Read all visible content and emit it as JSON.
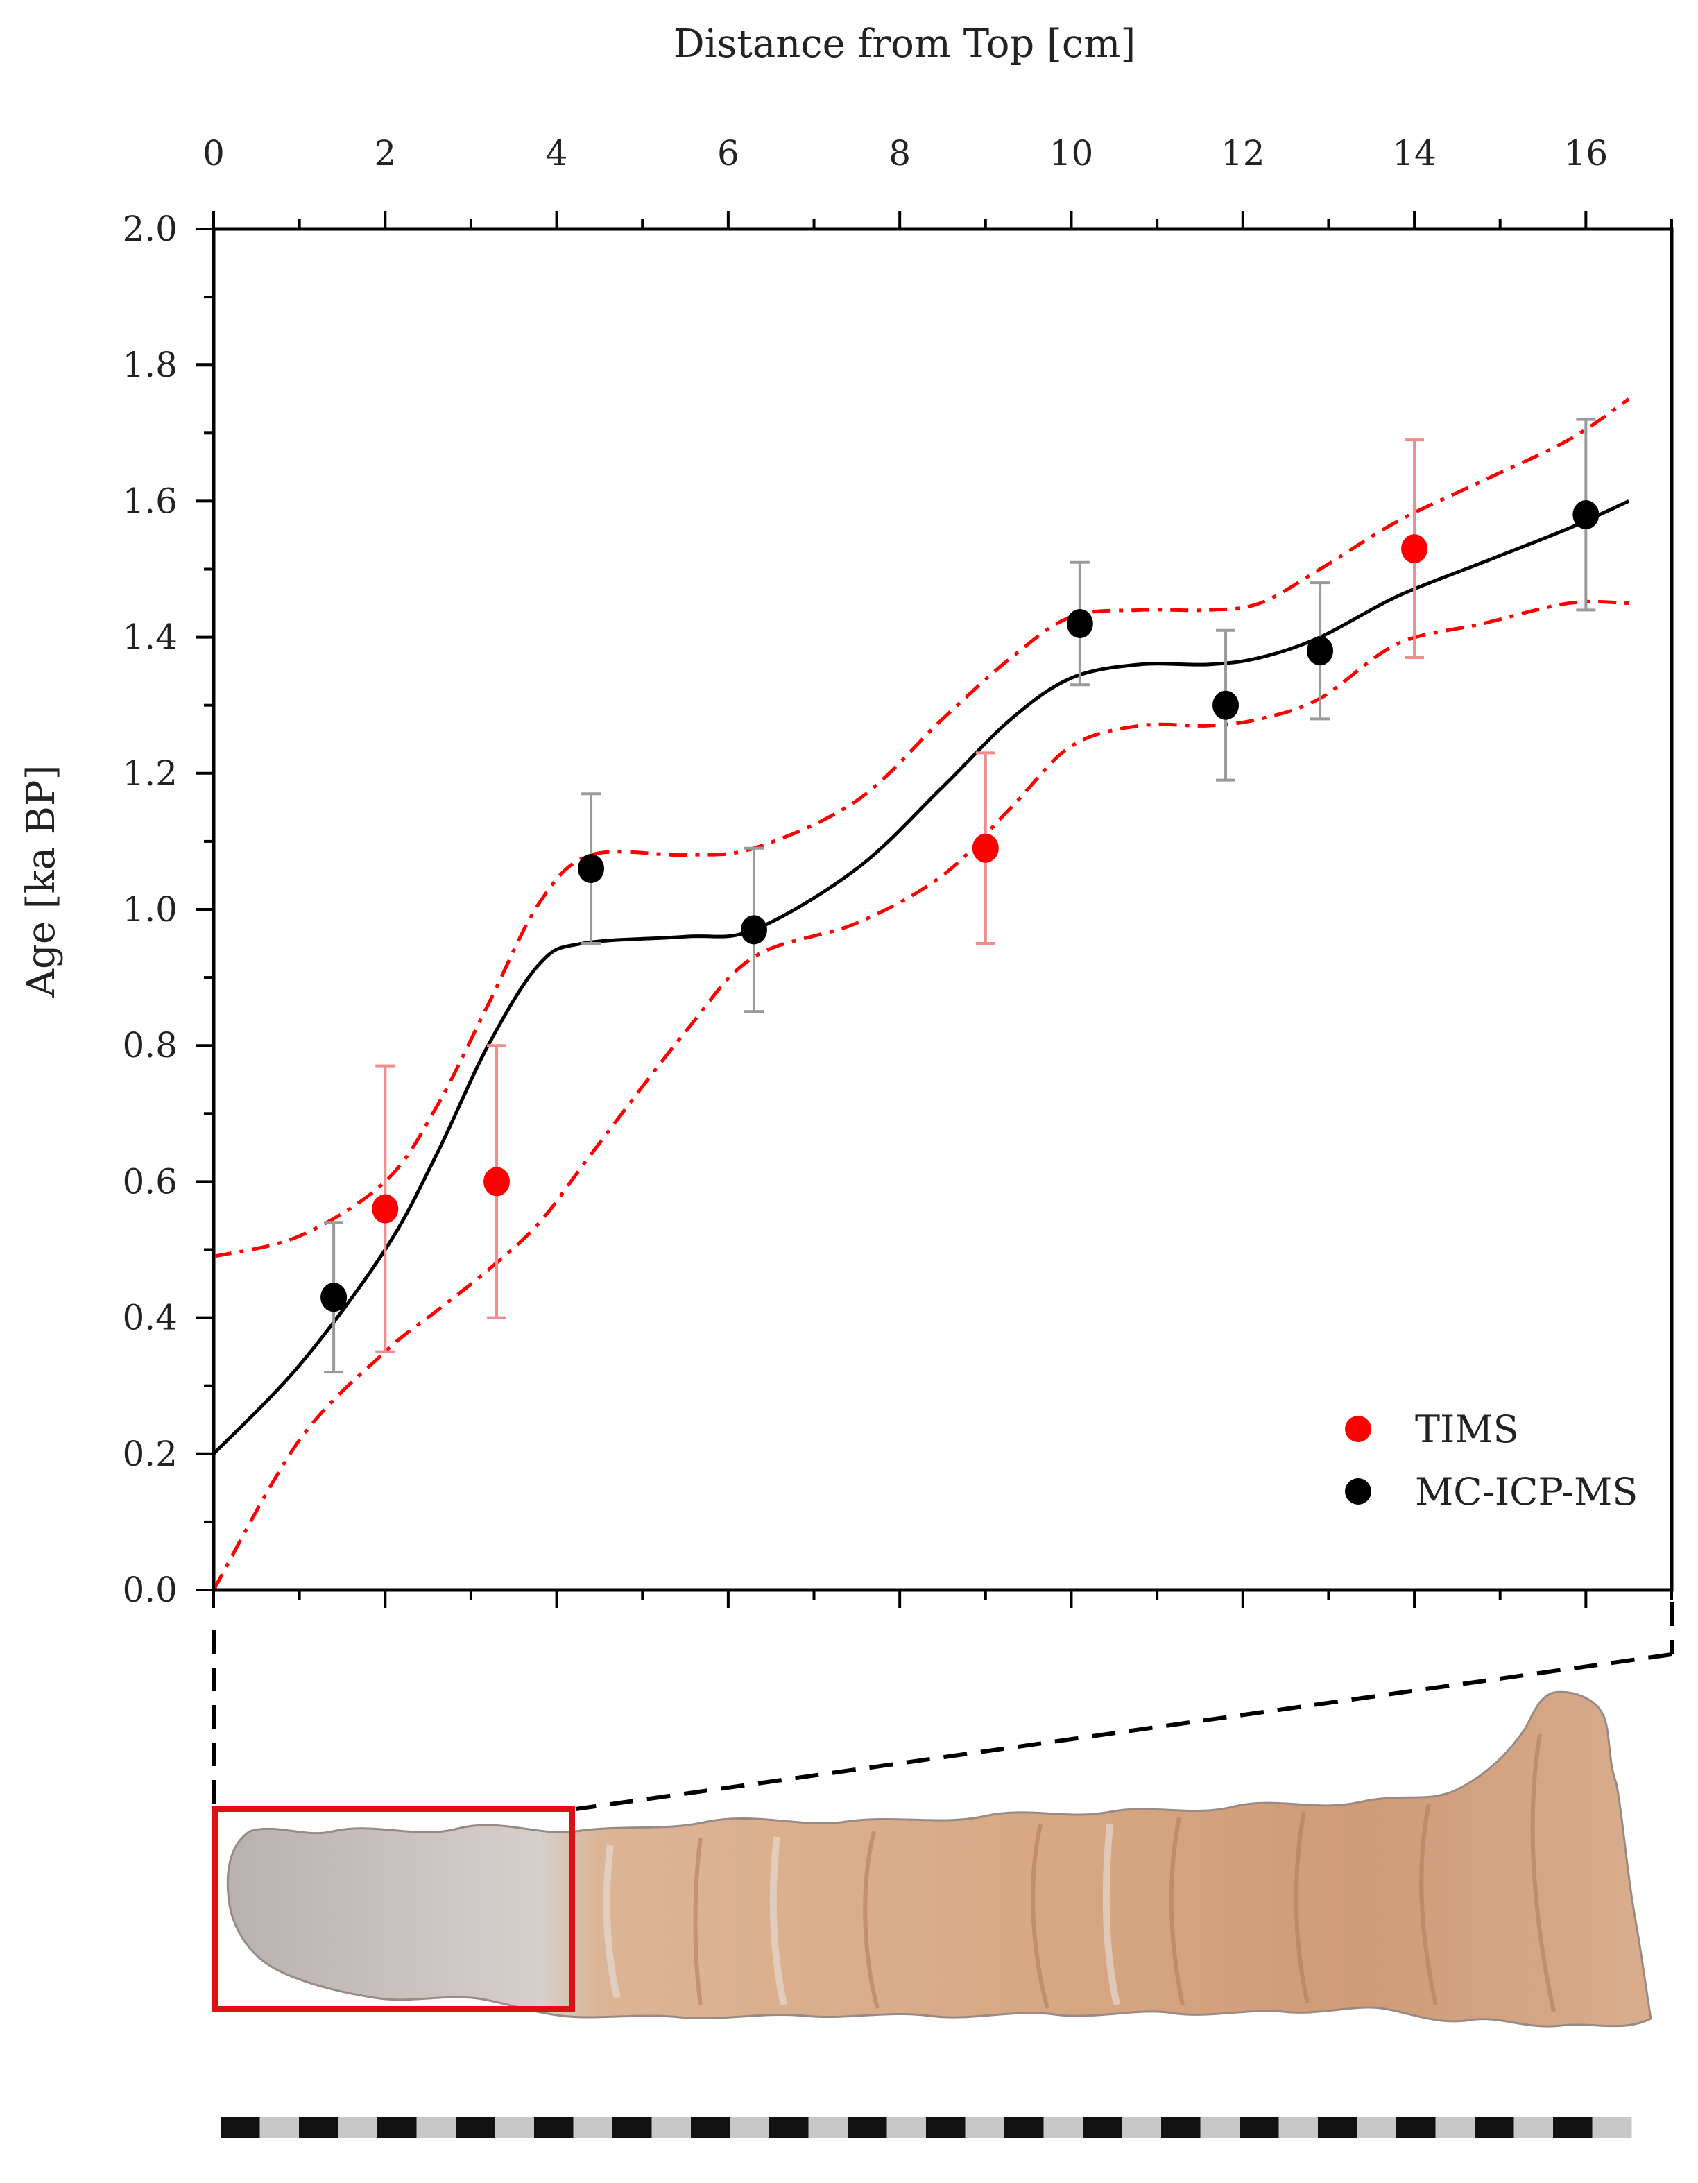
{
  "chart_data": {
    "type": "scatter",
    "title": "",
    "xlabel": "Distance from Top [cm]",
    "ylabel": "Age [ka BP]",
    "xlim": [
      0,
      17
    ],
    "ylim": [
      0.0,
      2.0
    ],
    "x_axis_position": "top",
    "x_ticks": [
      0,
      2,
      4,
      6,
      8,
      10,
      12,
      14,
      16
    ],
    "x_tick_labels": [
      "0",
      "2",
      "4",
      "6",
      "8",
      "10",
      "12",
      "14",
      "16"
    ],
    "y_ticks": [
      0.0,
      0.2,
      0.4,
      0.6,
      0.8,
      1.0,
      1.2,
      1.4,
      1.6,
      1.8,
      2.0
    ],
    "y_tick_labels": [
      "0.0",
      "0.2",
      "0.4",
      "0.6",
      "0.8",
      "1.0",
      "1.2",
      "1.4",
      "1.6",
      "1.8",
      "2.0"
    ],
    "grid": false,
    "legend_position": "bottom-right",
    "series": [
      {
        "name": "TIMS",
        "color": "#ff0000",
        "points": [
          {
            "x": 2.0,
            "y": 0.56,
            "err": 0.21
          },
          {
            "x": 3.3,
            "y": 0.6,
            "err": 0.2
          },
          {
            "x": 9.0,
            "y": 1.09,
            "err": 0.14
          },
          {
            "x": 14.0,
            "y": 1.53,
            "err": 0.16
          }
        ]
      },
      {
        "name": "MC-ICP-MS",
        "color": "#000000",
        "points": [
          {
            "x": 1.4,
            "y": 0.43,
            "err": 0.11
          },
          {
            "x": 4.4,
            "y": 1.06,
            "err": 0.11
          },
          {
            "x": 6.3,
            "y": 0.97,
            "err": 0.12
          },
          {
            "x": 10.1,
            "y": 1.42,
            "err": 0.09
          },
          {
            "x": 11.8,
            "y": 1.3,
            "err": 0.11
          },
          {
            "x": 12.9,
            "y": 1.38,
            "err": 0.1
          },
          {
            "x": 16.0,
            "y": 1.58,
            "err": 0.14
          }
        ]
      }
    ],
    "age_model": {
      "color": "#000000",
      "x": [
        0,
        1,
        2,
        2.6,
        3.2,
        3.8,
        4.3,
        5.5,
        6.3,
        7.5,
        8.5,
        9.3,
        10.0,
        10.8,
        11.6,
        12.2,
        12.9,
        13.8,
        14.8,
        15.8,
        16.5
      ],
      "y": [
        0.2,
        0.33,
        0.5,
        0.64,
        0.8,
        0.92,
        0.95,
        0.96,
        0.97,
        1.06,
        1.18,
        1.28,
        1.34,
        1.36,
        1.36,
        1.37,
        1.4,
        1.46,
        1.51,
        1.56,
        1.6
      ]
    },
    "confidence_upper": {
      "color": "#ff0000",
      "x": [
        0,
        1,
        2,
        2.6,
        3.2,
        3.8,
        4.4,
        5.5,
        6.3,
        7.5,
        8.5,
        9.3,
        10.0,
        10.8,
        11.6,
        12.2,
        12.9,
        13.8,
        14.8,
        15.8,
        16.5
      ],
      "y": [
        0.49,
        0.52,
        0.6,
        0.71,
        0.86,
        1.01,
        1.08,
        1.08,
        1.09,
        1.16,
        1.28,
        1.37,
        1.43,
        1.44,
        1.44,
        1.45,
        1.5,
        1.57,
        1.63,
        1.69,
        1.75
      ]
    },
    "confidence_lower": {
      "color": "#ff0000",
      "x": [
        0,
        1,
        2,
        2.6,
        3.2,
        3.8,
        4.4,
        5.5,
        6.3,
        7.5,
        8.5,
        9.3,
        10.0,
        10.8,
        11.6,
        12.2,
        12.9,
        13.8,
        14.8,
        15.8,
        16.5
      ],
      "y": [
        0.0,
        0.22,
        0.35,
        0.41,
        0.47,
        0.54,
        0.64,
        0.82,
        0.93,
        0.98,
        1.05,
        1.15,
        1.24,
        1.27,
        1.27,
        1.28,
        1.31,
        1.39,
        1.42,
        1.45,
        1.45
      ]
    }
  },
  "legend": {
    "tims_label": "TIMS",
    "mc_label": "MC-ICP-MS"
  },
  "sample": {
    "highlight_box_color": "#dd1111",
    "scale_bar_colors": [
      "#111111",
      "#c8c8c8"
    ]
  }
}
